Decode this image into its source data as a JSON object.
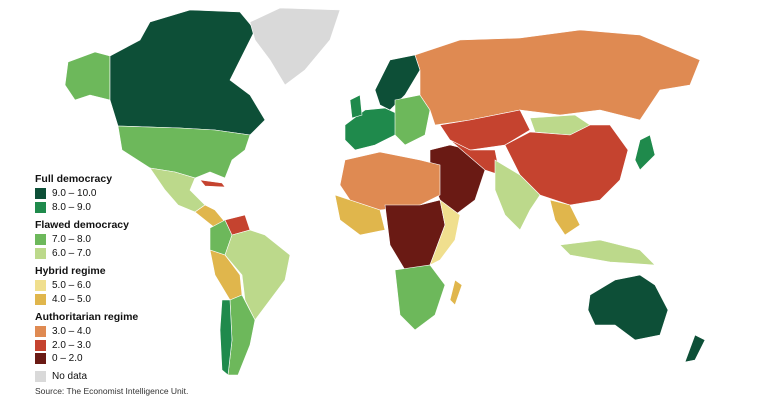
{
  "legend": {
    "groups": [
      {
        "title": "Full democracy",
        "items": [
          {
            "label": "9.0 – 10.0",
            "color": "#0d4f37"
          },
          {
            "label": "8.0 – 9.0",
            "color": "#1f8a4c"
          }
        ]
      },
      {
        "title": "Flawed democracy",
        "items": [
          {
            "label": "7.0 – 8.0",
            "color": "#6db85b"
          },
          {
            "label": "6.0 – 7.0",
            "color": "#bcd98b"
          }
        ]
      },
      {
        "title": "Hybrid regime",
        "items": [
          {
            "label": "5.0 – 6.0",
            "color": "#f0df8e"
          },
          {
            "label": "4.0 – 5.0",
            "color": "#e0b64c"
          }
        ]
      },
      {
        "title": "Authoritarian regime",
        "items": [
          {
            "label": "3.0 – 4.0",
            "color": "#df8a52"
          },
          {
            "label": "2.0 – 3.0",
            "color": "#c5432f"
          },
          {
            "label": "0 – 2.0",
            "color": "#6a1a14"
          }
        ]
      }
    ],
    "no_data": {
      "label": "No data",
      "color": "#d9d9d9"
    }
  },
  "source": "Source: The Economist Intelligence Unit."
}
